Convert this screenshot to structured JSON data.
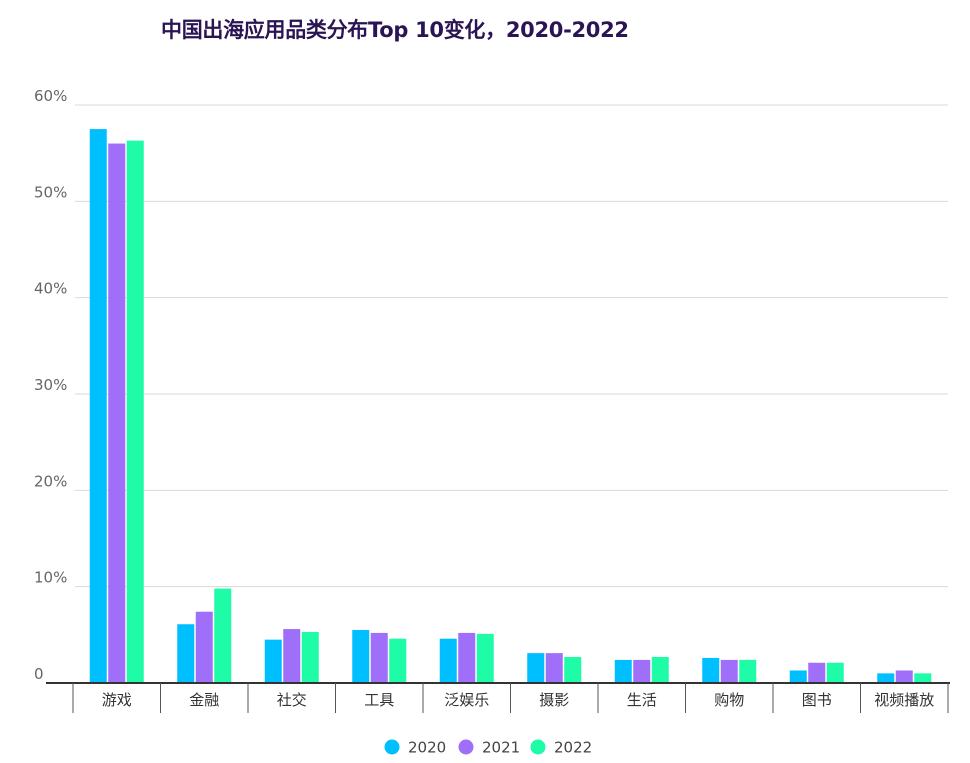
{
  "chart_data": {
    "type": "bar",
    "title": "中国出海应用品类分布Top 10变化，2020-2022",
    "xlabel": "",
    "ylabel": "",
    "ylim": [
      0,
      60
    ],
    "yticks": [
      "0",
      "10%",
      "20%",
      "30%",
      "40%",
      "50%",
      "60%"
    ],
    "grid": true,
    "legend_position": "bottom-center",
    "categories": [
      "游戏",
      "金融",
      "社交",
      "工具",
      "泛娱乐",
      "摄影",
      "生活",
      "购物",
      "图书",
      "视频播放"
    ],
    "series": [
      {
        "name": "2020",
        "color": "#00bfff",
        "values": [
          57.5,
          6.1,
          4.5,
          5.5,
          4.6,
          3.1,
          2.4,
          2.6,
          1.3,
          1.0
        ]
      },
      {
        "name": "2021",
        "color": "#9f6ff9",
        "values": [
          56.0,
          7.4,
          5.6,
          5.2,
          5.2,
          3.1,
          2.4,
          2.4,
          2.1,
          1.3
        ]
      },
      {
        "name": "2022",
        "color": "#1efca7",
        "values": [
          56.3,
          9.8,
          5.3,
          4.6,
          5.1,
          2.7,
          2.7,
          2.4,
          2.1,
          1.0
        ]
      }
    ]
  }
}
